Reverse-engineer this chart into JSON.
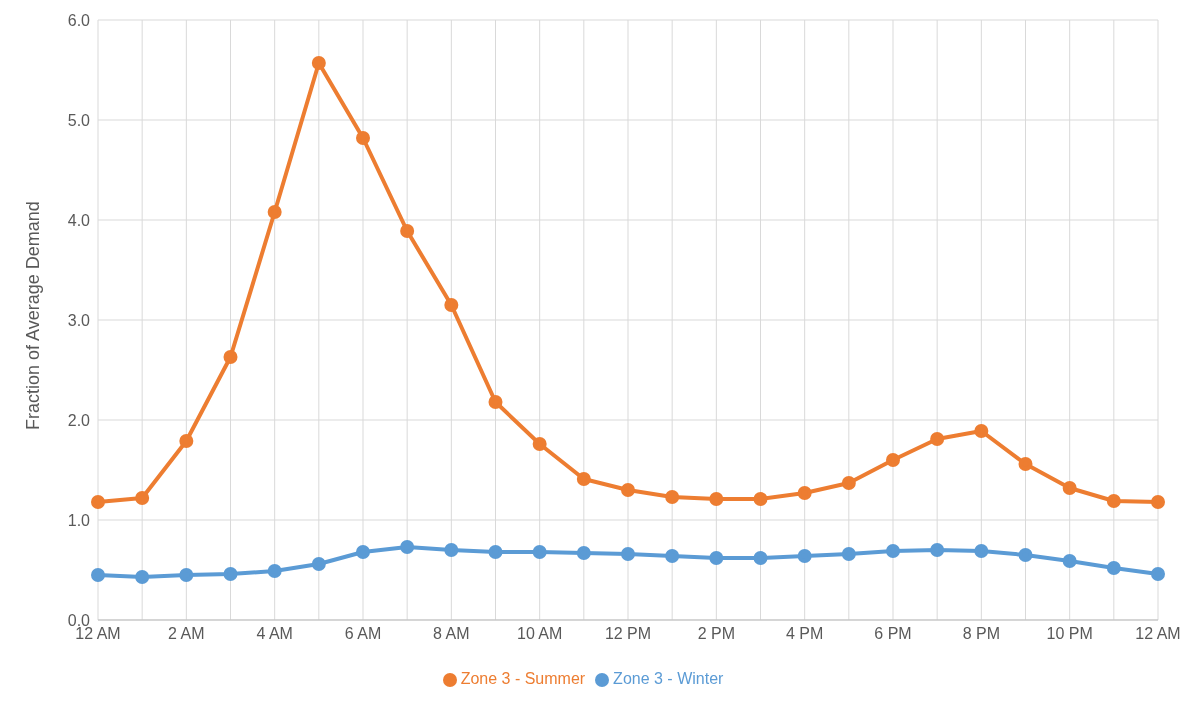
{
  "chart_data": {
    "type": "line",
    "ylabel": "Fraction of Average Demand",
    "categories": [
      "12 AM",
      null,
      "2 AM",
      null,
      "4 AM",
      null,
      "6 AM",
      null,
      "8 AM",
      null,
      "10 AM",
      null,
      "12 PM",
      null,
      "2 PM",
      null,
      "4 PM",
      null,
      "6 PM",
      null,
      "8 PM",
      null,
      "10 PM",
      null,
      "12 AM"
    ],
    "series": [
      {
        "name": "Zone 3 - Summer",
        "color": "#ed7d31",
        "values": [
          1.18,
          1.22,
          1.79,
          2.63,
          4.08,
          5.57,
          4.82,
          3.89,
          3.15,
          2.18,
          1.76,
          1.41,
          1.3,
          1.23,
          1.21,
          1.21,
          1.27,
          1.37,
          1.6,
          1.81,
          1.89,
          1.56,
          1.32,
          1.19,
          1.18
        ]
      },
      {
        "name": "Zone 3 - Winter",
        "color": "#5b9bd5",
        "values": [
          0.45,
          0.43,
          0.45,
          0.46,
          0.49,
          0.56,
          0.68,
          0.73,
          0.7,
          0.68,
          0.68,
          0.67,
          0.66,
          0.64,
          0.62,
          0.62,
          0.64,
          0.66,
          0.69,
          0.7,
          0.69,
          0.65,
          0.59,
          0.52,
          0.46
        ]
      }
    ],
    "ylim": [
      0,
      6
    ],
    "yticks": [
      {
        "value": 0,
        "label": "0.0"
      },
      {
        "value": 1,
        "label": "1.0"
      },
      {
        "value": 2,
        "label": "2.0"
      },
      {
        "value": 3,
        "label": "3.0"
      },
      {
        "value": 4,
        "label": "4.0"
      },
      {
        "value": 5,
        "label": "5.0"
      },
      {
        "value": 6,
        "label": "6.0"
      }
    ],
    "grid": true,
    "legend": "bottom",
    "marker": "circle",
    "line_style": "solid"
  }
}
